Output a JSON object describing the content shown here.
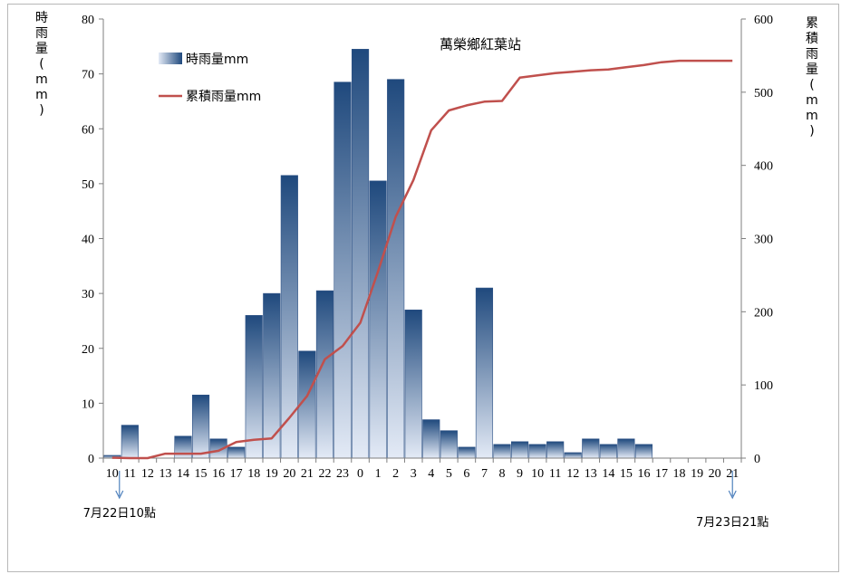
{
  "chart_data": {
    "type": "bar",
    "title": "萬榮鄉紅葉站",
    "ylabel_left": "時雨量(mm)",
    "ylabel_right": "累積雨量(mm)",
    "ylim_left": [
      0,
      80
    ],
    "yticks_left": [
      0,
      10,
      20,
      30,
      40,
      50,
      60,
      70,
      80
    ],
    "ylim_right": [
      0,
      600
    ],
    "yticks_right": [
      0,
      100,
      200,
      300,
      400,
      500,
      600
    ],
    "categories": [
      "10",
      "11",
      "12",
      "13",
      "14",
      "15",
      "16",
      "17",
      "18",
      "19",
      "20",
      "21",
      "22",
      "23",
      "0",
      "1",
      "2",
      "3",
      "4",
      "5",
      "6",
      "7",
      "8",
      "9",
      "10",
      "11",
      "12",
      "13",
      "14",
      "15",
      "16",
      "17",
      "18",
      "19",
      "20",
      "21"
    ],
    "series": [
      {
        "name": "時雨量mm",
        "type": "bar",
        "axis": "left",
        "color": "#1f497d",
        "values": [
          0.5,
          6,
          0,
          0,
          4,
          11.5,
          3.5,
          2,
          26,
          30,
          51.5,
          19.5,
          30.5,
          68.5,
          74.5,
          50.5,
          69,
          27,
          7,
          5,
          2,
          31,
          2.5,
          3,
          2.5,
          3,
          1,
          3.5,
          2.5,
          3.5,
          2.5,
          0,
          0,
          0,
          0,
          0
        ]
      },
      {
        "name": "累積雨量mm",
        "type": "line",
        "axis": "right",
        "color": "#c0504d",
        "values": [
          0.5,
          0,
          0,
          6,
          6,
          6,
          10,
          22,
          25,
          27,
          55,
          85,
          135,
          153,
          185,
          255,
          330,
          380,
          448,
          475,
          482,
          487,
          488,
          520,
          523,
          526,
          528,
          530,
          531,
          534,
          537,
          541,
          543,
          543,
          543,
          543
        ]
      }
    ],
    "annotations": [
      {
        "text": "7月22日10點",
        "category_index": 0
      },
      {
        "text": "7月23日21點",
        "category_index": 35
      }
    ],
    "legend_position": "top-left",
    "grid": false
  }
}
